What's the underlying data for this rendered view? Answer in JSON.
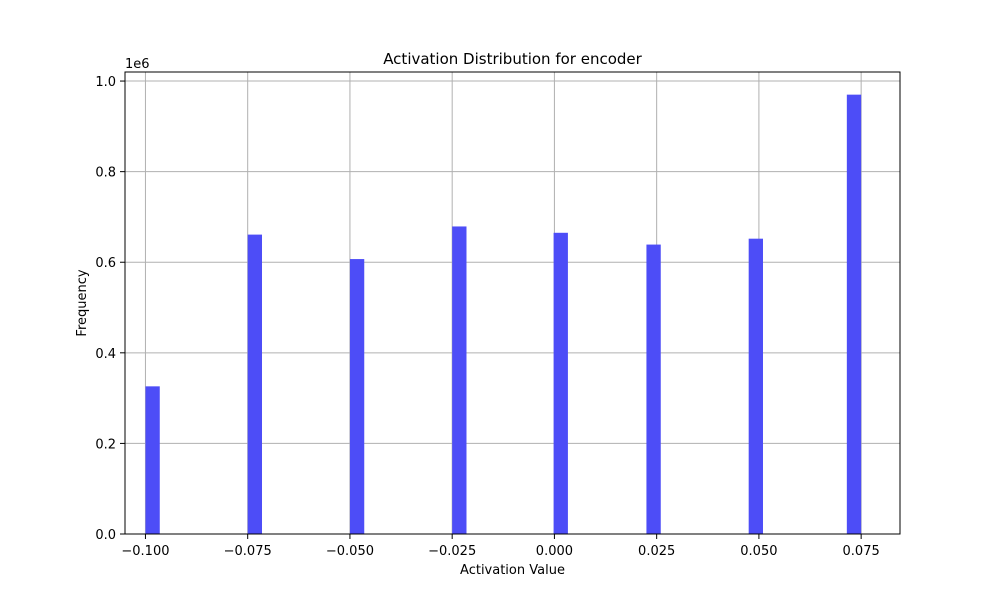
{
  "chart_data": {
    "type": "bar",
    "title": "Activation Distribution for encoder",
    "xlabel": "Activation Value",
    "ylabel": "Frequency",
    "y_scale_label": "1e6",
    "xlim": [
      -0.105,
      0.0845
    ],
    "ylim": [
      0,
      1.02
    ],
    "x_ticks": [
      -0.1,
      -0.075,
      -0.05,
      -0.025,
      0.0,
      0.025,
      0.05,
      0.075
    ],
    "x_tick_labels": [
      "−0.100",
      "−0.075",
      "−0.050",
      "−0.025",
      "0.000",
      "0.025",
      "0.050",
      "0.075"
    ],
    "y_ticks": [
      0,
      0.2,
      0.4,
      0.6,
      0.8,
      1.0
    ],
    "y_tick_labels": [
      "0.0",
      "0.2",
      "0.4",
      "0.6",
      "0.8",
      "1.0"
    ],
    "grid": true,
    "bar_color": "#4d4df7",
    "bars": [
      {
        "x_start": -0.1,
        "x_end": -0.0965,
        "value": 0.326
      },
      {
        "x_start": -0.075,
        "x_end": -0.0715,
        "value": 0.661
      },
      {
        "x_start": -0.05,
        "x_end": -0.0465,
        "value": 0.607
      },
      {
        "x_start": -0.025,
        "x_end": -0.0215,
        "value": 0.679
      },
      {
        "x_start": -0.0002,
        "x_end": 0.0033,
        "value": 0.665
      },
      {
        "x_start": 0.0225,
        "x_end": 0.026,
        "value": 0.639
      },
      {
        "x_start": 0.0475,
        "x_end": 0.051,
        "value": 0.652
      },
      {
        "x_start": 0.0715,
        "x_end": 0.075,
        "value": 0.97
      }
    ]
  }
}
